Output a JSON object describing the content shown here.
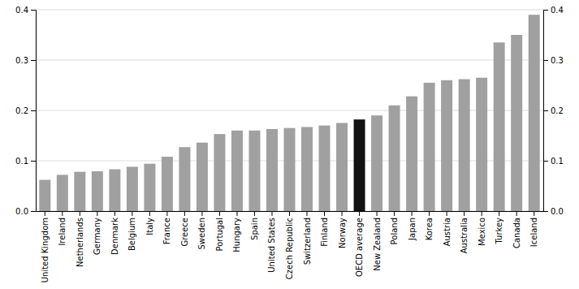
{
  "chart_data": {
    "type": "bar",
    "categories": [
      "United Kingdom",
      "Ireland",
      "Netherlands",
      "Germany",
      "Denmark",
      "Belgium",
      "Italy",
      "France",
      "Greece",
      "Sweden",
      "Portugal",
      "Hungary",
      "Spain",
      "United States",
      "Czech Republic",
      "Switzerland",
      "Finland",
      "Norway",
      "OECD average",
      "New Zealand",
      "Poland",
      "Japan",
      "Korea",
      "Austria",
      "Australia",
      "Mexico",
      "Turkey",
      "Canada",
      "Iceland"
    ],
    "values": [
      0.062,
      0.072,
      0.078,
      0.079,
      0.083,
      0.088,
      0.094,
      0.108,
      0.127,
      0.136,
      0.153,
      0.16,
      0.16,
      0.163,
      0.165,
      0.167,
      0.17,
      0.175,
      0.182,
      0.19,
      0.21,
      0.228,
      0.255,
      0.26,
      0.262,
      0.265,
      0.335,
      0.35,
      0.39
    ],
    "colors": [
      "#a0a0a0",
      "#a0a0a0",
      "#a0a0a0",
      "#a0a0a0",
      "#a0a0a0",
      "#a0a0a0",
      "#a0a0a0",
      "#a0a0a0",
      "#a0a0a0",
      "#a0a0a0",
      "#a0a0a0",
      "#a0a0a0",
      "#a0a0a0",
      "#a0a0a0",
      "#a0a0a0",
      "#a0a0a0",
      "#a0a0a0",
      "#a0a0a0",
      "#111111",
      "#a0a0a0",
      "#a0a0a0",
      "#a0a0a0",
      "#a0a0a0",
      "#a0a0a0",
      "#a0a0a0",
      "#a0a0a0",
      "#a0a0a0",
      "#a0a0a0",
      "#a0a0a0"
    ],
    "ylim": [
      0,
      0.4
    ],
    "yticks": [
      {
        "value": 0,
        "label": "0.0"
      },
      0.1,
      0.2,
      0.3,
      0.4
    ],
    "y2lim": [
      0,
      0.4
    ],
    "y2ticks": [
      {
        "value": 0,
        "label": "0.0"
      },
      0.1,
      0.2,
      0.3,
      0.4
    ],
    "grid": true
  }
}
